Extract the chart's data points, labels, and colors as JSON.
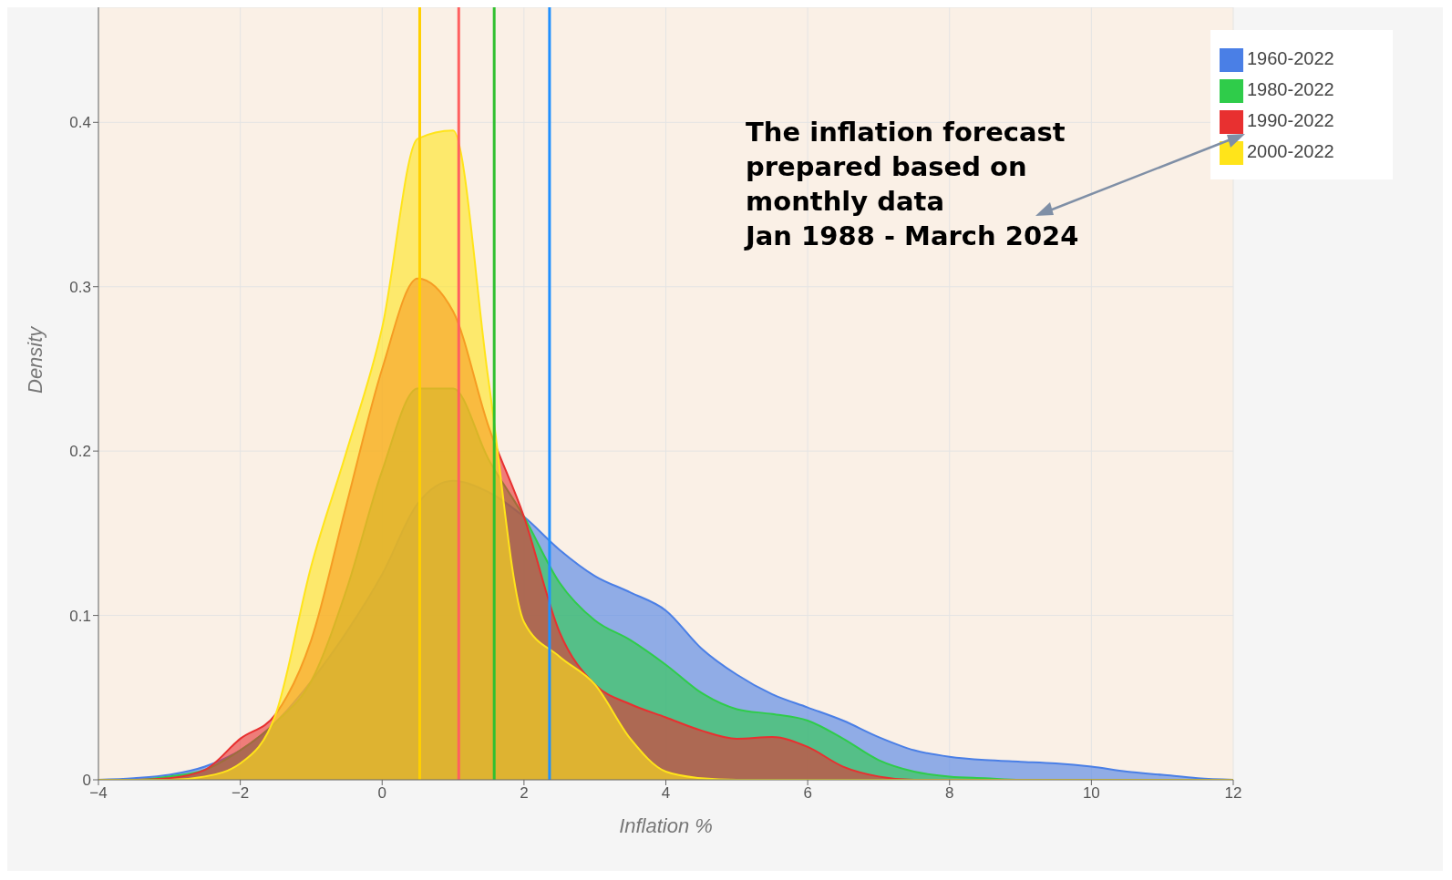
{
  "chart_data": {
    "type": "area",
    "xlabel": "Inflation %",
    "ylabel": "Density",
    "x": [
      -4,
      -3.5,
      -3,
      -2.5,
      -2,
      -1.5,
      -1,
      -0.5,
      0,
      0.5,
      1,
      1.5,
      2,
      2.5,
      3,
      3.5,
      4,
      4.5,
      5,
      5.5,
      6,
      6.5,
      7,
      7.5,
      8,
      8.5,
      9,
      9.5,
      10,
      10.5,
      11,
      11.5,
      12
    ],
    "series": [
      {
        "name": "1960-2022",
        "color": "#4a7fe6",
        "values": [
          0,
          0.001,
          0.003,
          0.008,
          0.018,
          0.035,
          0.06,
          0.09,
          0.125,
          0.168,
          0.182,
          0.175,
          0.16,
          0.14,
          0.124,
          0.114,
          0.103,
          0.08,
          0.064,
          0.052,
          0.044,
          0.036,
          0.026,
          0.018,
          0.014,
          0.012,
          0.011,
          0.01,
          0.008,
          0.005,
          0.003,
          0.001,
          0
        ]
      },
      {
        "name": "1980-2022",
        "color": "#2fcc4a",
        "values": [
          0,
          0,
          0.002,
          0.006,
          0.018,
          0.035,
          0.06,
          0.116,
          0.188,
          0.238,
          0.238,
          0.195,
          0.16,
          0.12,
          0.097,
          0.085,
          0.07,
          0.053,
          0.043,
          0.04,
          0.036,
          0.025,
          0.012,
          0.005,
          0.002,
          0.001,
          0,
          0,
          0,
          0,
          0,
          0,
          0
        ]
      },
      {
        "name": "1990-2022",
        "color": "#e83030",
        "values": [
          0,
          0,
          0.001,
          0.006,
          0.025,
          0.04,
          0.085,
          0.168,
          0.25,
          0.305,
          0.285,
          0.215,
          0.16,
          0.09,
          0.058,
          0.046,
          0.038,
          0.03,
          0.025,
          0.026,
          0.02,
          0.008,
          0.002,
          0,
          0,
          0,
          0,
          0,
          0,
          0,
          0,
          0,
          0
        ]
      },
      {
        "name": "2000-2022",
        "color": "#ffe41a",
        "values": [
          0,
          0,
          0,
          0.002,
          0.01,
          0.04,
          0.13,
          0.2,
          0.275,
          0.39,
          0.395,
          0.243,
          0.096,
          0.075,
          0.058,
          0.025,
          0.005,
          0.001,
          0,
          0,
          0,
          0,
          0,
          0,
          0,
          0,
          0,
          0,
          0,
          0,
          0,
          0,
          0
        ]
      }
    ],
    "xlim": [
      -4,
      12
    ],
    "xticks": [
      {
        "value": -4,
        "label": "−4"
      },
      {
        "value": -2,
        "label": "−2"
      },
      0,
      2,
      4,
      6,
      8,
      10,
      12
    ],
    "ylim": [
      0,
      0.47
    ],
    "yticks": [
      0,
      0.1,
      0.2,
      0.3,
      0.4
    ],
    "ref_lines": [
      {
        "axis": "x",
        "value": 0.53,
        "color": "#ffd000"
      },
      {
        "axis": "x",
        "value": 1.08,
        "color": "#ff6060"
      },
      {
        "axis": "x",
        "value": 1.58,
        "color": "#30c030"
      },
      {
        "axis": "x",
        "value": 2.36,
        "color": "#2090ff"
      }
    ],
    "annotations": [
      "The inflation forecast\nprepared based on\nmonthly data\nJan 1988 - March 2024"
    ],
    "grid": true,
    "legend": "top right",
    "marker": "none",
    "line_style": "solid"
  }
}
